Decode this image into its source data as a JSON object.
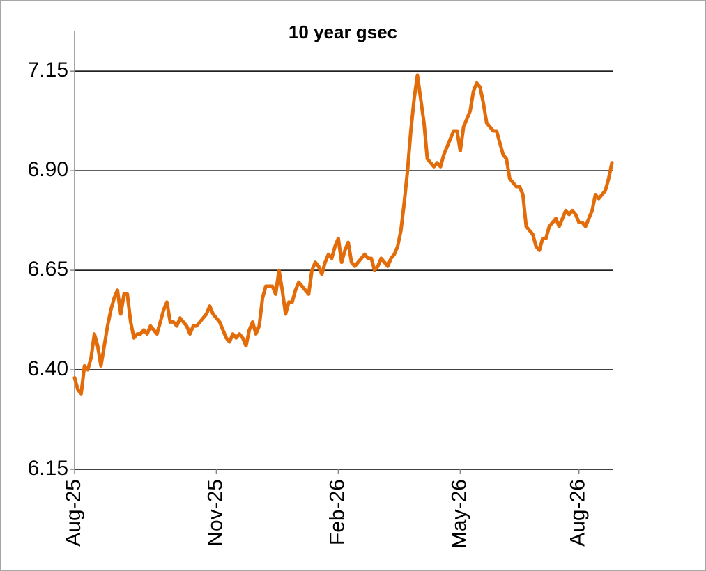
{
  "chart_data": {
    "type": "line",
    "title": "10 year gsec",
    "series": [
      {
        "name": "10 year gsec",
        "color": "#e36c0a",
        "values": [
          6.38,
          6.35,
          6.34,
          6.41,
          6.4,
          6.43,
          6.49,
          6.46,
          6.41,
          6.46,
          6.51,
          6.55,
          6.58,
          6.6,
          6.54,
          6.59,
          6.59,
          6.52,
          6.48,
          6.49,
          6.49,
          6.5,
          6.49,
          6.51,
          6.5,
          6.49,
          6.52,
          6.55,
          6.57,
          6.52,
          6.52,
          6.51,
          6.53,
          6.52,
          6.51,
          6.49,
          6.51,
          6.51,
          6.52,
          6.53,
          6.54,
          6.56,
          6.54,
          6.53,
          6.52,
          6.5,
          6.48,
          6.47,
          6.49,
          6.48,
          6.49,
          6.48,
          6.46,
          6.5,
          6.52,
          6.49,
          6.51,
          6.58,
          6.61,
          6.61,
          6.61,
          6.59,
          6.65,
          6.6,
          6.54,
          6.57,
          6.57,
          6.6,
          6.62,
          6.61,
          6.6,
          6.59,
          6.65,
          6.67,
          6.66,
          6.64,
          6.67,
          6.69,
          6.68,
          6.71,
          6.73,
          6.67,
          6.7,
          6.72,
          6.67,
          6.66,
          6.67,
          6.68,
          6.69,
          6.68,
          6.68,
          6.65,
          6.66,
          6.68,
          6.67,
          6.66,
          6.68,
          6.69,
          6.71,
          6.75,
          6.82,
          6.9,
          7.0,
          7.08,
          7.14,
          7.08,
          7.02,
          6.93,
          6.92,
          6.91,
          6.92,
          6.91,
          6.94,
          6.96,
          6.98,
          7.0,
          7.0,
          6.95,
          7.01,
          7.03,
          7.05,
          7.1,
          7.12,
          7.11,
          7.07,
          7.02,
          7.01,
          7.0,
          7.0,
          6.97,
          6.94,
          6.93,
          6.88,
          6.87,
          6.86,
          6.86,
          6.84,
          6.76,
          6.75,
          6.74,
          6.71,
          6.7,
          6.73,
          6.73,
          6.76,
          6.77,
          6.78,
          6.76,
          6.78,
          6.8,
          6.79,
          6.8,
          6.79,
          6.77,
          6.77,
          6.76,
          6.78,
          6.8,
          6.84,
          6.83,
          6.84,
          6.85,
          6.88,
          6.92
        ]
      }
    ],
    "xlim": [
      0,
      163
    ],
    "xticks": [
      {
        "value": 0,
        "label": "Aug-25"
      },
      {
        "value": 43,
        "label": "Nov-25"
      },
      {
        "value": 80,
        "label": "Feb-26"
      },
      {
        "value": 117,
        "label": "May-26"
      },
      {
        "value": 153,
        "label": "Aug-26"
      }
    ],
    "ylim": [
      6.15,
      7.25
    ],
    "yticks": [
      6.15,
      {
        "value": 6.4,
        "label": "6.40"
      },
      6.65,
      {
        "value": 6.9,
        "label": "6.90"
      },
      7.15
    ],
    "grid": true
  }
}
